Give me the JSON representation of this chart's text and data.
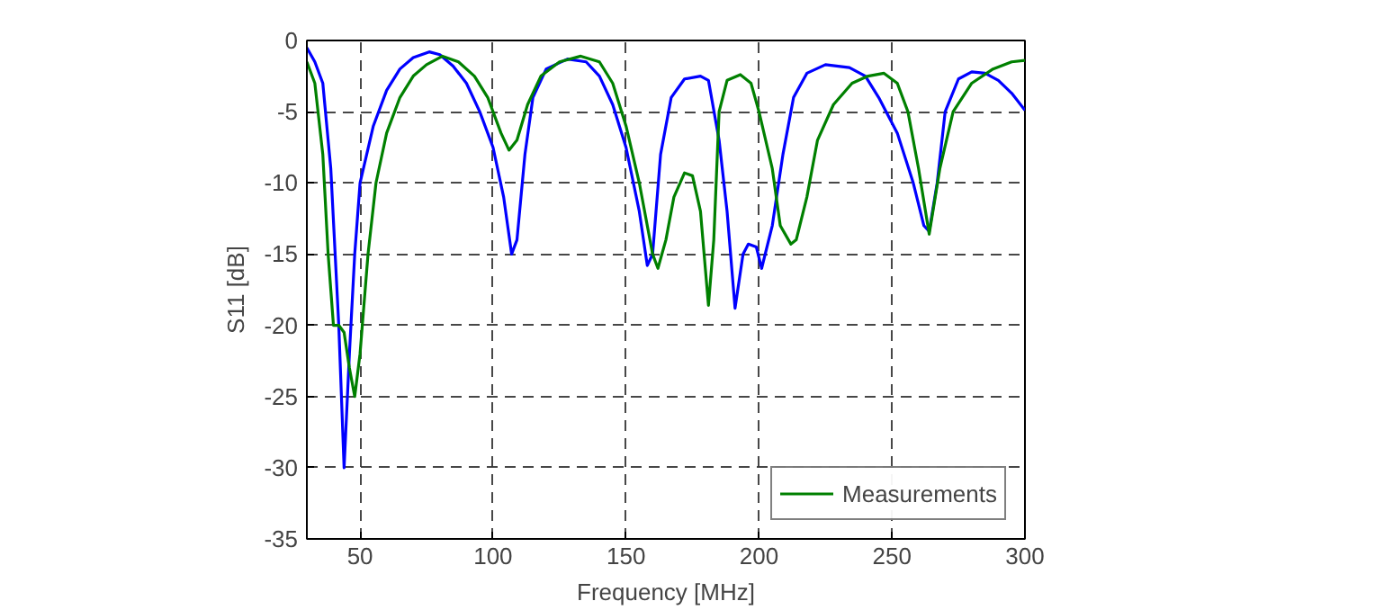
{
  "chart_data": {
    "type": "line",
    "xlabel": "Frequency [MHz]",
    "ylabel": "S11 [dB]",
    "xlim": [
      30,
      300
    ],
    "ylim": [
      -35,
      0
    ],
    "xticks": [
      50,
      100,
      150,
      200,
      250,
      300
    ],
    "yticks": [
      -35,
      -30,
      -25,
      -20,
      -15,
      -10,
      -5,
      0
    ],
    "grid": true,
    "legend": "bottom right",
    "marker": "none",
    "line_style": "solid",
    "series": [
      {
        "color": "#0000ff",
        "x": [
          30,
          33,
          36,
          39,
          42,
          44,
          46,
          48,
          50,
          55,
          60,
          65,
          70,
          76,
          80,
          85,
          90,
          95,
          100,
          104,
          107,
          109,
          112,
          115,
          120,
          128,
          135,
          140,
          145,
          150,
          155,
          158,
          160,
          163,
          167,
          172,
          178,
          181,
          185,
          188,
          191,
          194,
          196,
          199,
          201,
          205,
          209,
          213,
          218,
          225,
          234,
          240,
          245,
          252,
          258,
          262,
          264,
          267,
          270,
          275,
          280,
          285,
          290,
          295,
          300
        ],
        "values": [
          -0.5,
          -1.5,
          -3,
          -9,
          -20,
          -30,
          -22,
          -15,
          -10,
          -6,
          -3.5,
          -2,
          -1.2,
          -0.8,
          -1,
          -1.8,
          -3,
          -5,
          -7.5,
          -11,
          -15,
          -14,
          -8,
          -4,
          -2,
          -1.3,
          -1.5,
          -2.5,
          -4.5,
          -7.5,
          -12,
          -15.8,
          -15,
          -8,
          -4,
          -2.7,
          -2.5,
          -2.8,
          -7,
          -12,
          -18.8,
          -15,
          -14.3,
          -14.5,
          -16,
          -13,
          -8,
          -4,
          -2.3,
          -1.7,
          -1.9,
          -2.5,
          -4,
          -6.5,
          -10,
          -13,
          -13.4,
          -10,
          -5,
          -2.7,
          -2.2,
          -2.3,
          -2.8,
          -3.7,
          -4.9
        ]
      },
      {
        "name": "Measurements",
        "color": "#008000",
        "x": [
          30,
          33,
          36,
          38,
          40,
          42,
          44,
          46,
          48,
          50,
          53,
          56,
          60,
          65,
          70,
          75,
          81,
          87,
          93,
          98,
          103,
          106,
          109,
          113,
          118,
          125,
          133,
          140,
          145,
          150,
          155,
          160,
          162,
          165,
          168,
          172,
          175,
          178,
          181,
          183,
          185,
          188,
          193,
          197,
          200,
          205,
          208,
          212,
          214,
          218,
          222,
          228,
          235,
          241,
          247,
          252,
          256,
          260,
          264,
          268,
          273,
          280,
          288,
          295,
          300
        ],
        "values": [
          -1.5,
          -3,
          -8,
          -15,
          -20,
          -20,
          -20.5,
          -23,
          -25,
          -22,
          -15,
          -10,
          -6.5,
          -4,
          -2.5,
          -1.7,
          -1.1,
          -1.5,
          -2.5,
          -4,
          -6.5,
          -7.7,
          -7,
          -4.5,
          -2.5,
          -1.5,
          -1.1,
          -1.5,
          -3,
          -6,
          -10,
          -15,
          -16,
          -14,
          -11,
          -9.3,
          -9.5,
          -12,
          -18.6,
          -14,
          -5,
          -2.8,
          -2.4,
          -3,
          -5,
          -9,
          -13,
          -14.3,
          -14,
          -11,
          -7,
          -4.5,
          -3,
          -2.5,
          -2.3,
          -3,
          -5,
          -9,
          -13.6,
          -9,
          -5,
          -3,
          -2,
          -1.5,
          -1.4
        ]
      }
    ]
  }
}
